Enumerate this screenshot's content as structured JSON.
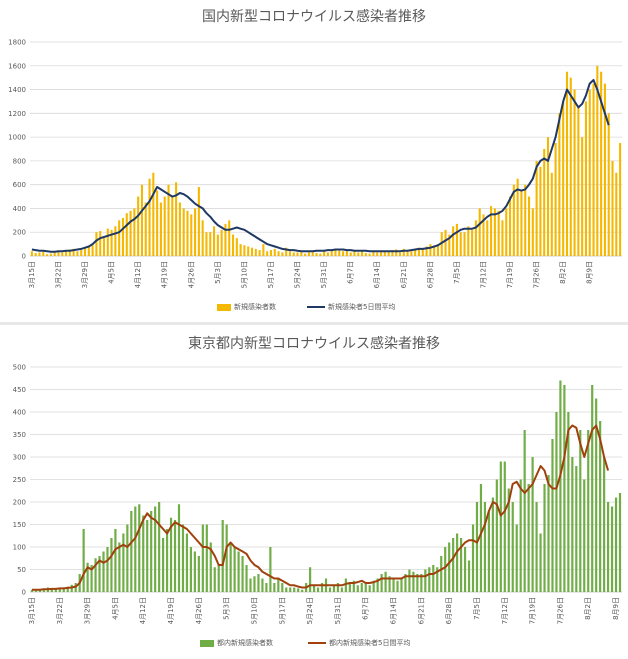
{
  "chart_data": [
    {
      "type": "bar",
      "title": "国内新型コロナウイルス感染者推移",
      "ylim": [
        0,
        1800
      ],
      "yticks": [
        0,
        200,
        400,
        600,
        800,
        1000,
        1200,
        1400,
        1600,
        1800
      ],
      "grid": true,
      "legend_position": "bottom",
      "bar_color": "#f5b800",
      "line_color": "#1f3864",
      "x_tick_labels": [
        "3月15日",
        "3月22日",
        "3月29日",
        "4月5日",
        "4月12日",
        "4月19日",
        "4月26日",
        "5月3日",
        "5月10日",
        "5月17日",
        "5月24日",
        "5月31日",
        "6月7日",
        "6月14日",
        "6月21日",
        "6月28日",
        "7月5日",
        "7月12日",
        "7月19日",
        "7月26日",
        "8月2日",
        "8月9日"
      ],
      "series": [
        {
          "name": "新規感染者数",
          "type": "bar",
          "values": [
            40,
            25,
            30,
            35,
            15,
            20,
            40,
            35,
            30,
            45,
            55,
            60,
            40,
            50,
            70,
            75,
            90,
            200,
            210,
            150,
            230,
            220,
            250,
            300,
            320,
            360,
            380,
            400,
            500,
            600,
            450,
            650,
            700,
            550,
            450,
            500,
            600,
            500,
            620,
            450,
            400,
            380,
            350,
            400,
            580,
            300,
            200,
            200,
            250,
            180,
            220,
            270,
            300,
            180,
            150,
            100,
            90,
            80,
            70,
            60,
            50,
            100,
            40,
            50,
            60,
            40,
            30,
            70,
            40,
            30,
            30,
            40,
            20,
            30,
            35,
            25,
            20,
            40,
            30,
            45,
            60,
            45,
            40,
            50,
            30,
            45,
            30,
            40,
            25,
            20,
            40,
            30,
            40,
            35,
            40,
            50,
            55,
            30,
            60,
            50,
            40,
            60,
            70,
            60,
            80,
            100,
            80,
            100,
            200,
            220,
            180,
            250,
            270,
            200,
            200,
            250,
            220,
            300,
            400,
            350,
            300,
            420,
            400,
            380,
            300,
            400,
            500,
            600,
            650,
            550,
            600,
            500,
            400,
            800,
            750,
            900,
            1000,
            700,
            950,
            1200,
            1300,
            1550,
            1500,
            1400,
            1250,
            1000,
            1300,
            1400,
            1450,
            1600,
            1550,
            1450,
            1200,
            800,
            700,
            950
          ]
        },
        {
          "name": "新規感染者5日間平均",
          "type": "line",
          "values": [
            55,
            50,
            45,
            45,
            40,
            35,
            35,
            40,
            40,
            45,
            45,
            50,
            55,
            60,
            70,
            80,
            100,
            130,
            150,
            160,
            170,
            180,
            190,
            200,
            230,
            260,
            290,
            310,
            340,
            380,
            420,
            460,
            520,
            580,
            560,
            540,
            520,
            500,
            510,
            530,
            520,
            500,
            470,
            440,
            420,
            400,
            360,
            330,
            290,
            260,
            240,
            220,
            220,
            230,
            240,
            230,
            220,
            200,
            180,
            160,
            140,
            120,
            100,
            90,
            80,
            70,
            60,
            55,
            50,
            50,
            45,
            40,
            40,
            40,
            40,
            45,
            45,
            45,
            50,
            50,
            55,
            55,
            55,
            50,
            50,
            45,
            45,
            45,
            45,
            40,
            40,
            40,
            40,
            40,
            40,
            40,
            40,
            40,
            45,
            45,
            50,
            55,
            60,
            60,
            65,
            70,
            80,
            90,
            110,
            130,
            150,
            180,
            200,
            220,
            230,
            230,
            230,
            240,
            270,
            300,
            330,
            350,
            350,
            360,
            380,
            420,
            480,
            540,
            560,
            550,
            560,
            600,
            650,
            750,
            800,
            820,
            800,
            900,
            1000,
            1150,
            1300,
            1400,
            1350,
            1300,
            1250,
            1280,
            1350,
            1450,
            1480,
            1400,
            1300,
            1200,
            1100
          ]
        }
      ]
    },
    {
      "type": "bar",
      "title": "東京都内新型コロナウイルス感染者推移",
      "ylim": [
        0,
        500
      ],
      "yticks": [
        0,
        50,
        100,
        150,
        200,
        250,
        300,
        350,
        400,
        450,
        500
      ],
      "grid": true,
      "legend_position": "bottom",
      "bar_color": "#70ad47",
      "line_color": "#a0410d",
      "x_tick_labels": [
        "3月15日",
        "3月22日",
        "3月29日",
        "4月5日",
        "4月12日",
        "4月19日",
        "4月26日",
        "5月3日",
        "5月10日",
        "5月17日",
        "5月24日",
        "5月31日",
        "6月7日",
        "6月14日",
        "6月21日",
        "6月28日",
        "7月5日",
        "7月12日",
        "7月19日",
        "7月26日",
        "8月2日",
        "8月9日"
      ],
      "series": [
        {
          "name": "都内新規感染者数",
          "type": "bar",
          "values": [
            5,
            3,
            6,
            4,
            10,
            8,
            7,
            10,
            8,
            12,
            16,
            20,
            40,
            140,
            65,
            60,
            75,
            80,
            90,
            100,
            120,
            140,
            110,
            130,
            150,
            180,
            190,
            195,
            170,
            160,
            180,
            190,
            200,
            120,
            140,
            165,
            160,
            195,
            150,
            130,
            100,
            90,
            80,
            150,
            150,
            110,
            55,
            60,
            160,
            150,
            110,
            100,
            90,
            80,
            60,
            30,
            35,
            40,
            30,
            20,
            100,
            20,
            30,
            20,
            10,
            10,
            10,
            8,
            5,
            20,
            55,
            15,
            10,
            20,
            30,
            10,
            15,
            20,
            10,
            30,
            20,
            25,
            15,
            20,
            20,
            15,
            25,
            30,
            40,
            45,
            35,
            30,
            25,
            30,
            40,
            50,
            45,
            40,
            40,
            50,
            55,
            60,
            55,
            80,
            100,
            110,
            120,
            130,
            120,
            100,
            70,
            150,
            200,
            240,
            200,
            180,
            210,
            250,
            290,
            290,
            230,
            200,
            150,
            250,
            360,
            240,
            300,
            200,
            130,
            240,
            260,
            340,
            400,
            470,
            460,
            400,
            300,
            280,
            360,
            250,
            360,
            460,
            430,
            380,
            300,
            200,
            190,
            210,
            220
          ]
        },
        {
          "name": "都内新規感染者5日間平均",
          "type": "line",
          "values": [
            5,
            5,
            5,
            6,
            6,
            7,
            7,
            8,
            8,
            9,
            10,
            12,
            20,
            40,
            55,
            50,
            60,
            70,
            65,
            70,
            80,
            95,
            100,
            105,
            100,
            110,
            120,
            140,
            160,
            175,
            165,
            160,
            150,
            140,
            130,
            145,
            155,
            150,
            145,
            140,
            130,
            120,
            110,
            100,
            100,
            95,
            80,
            60,
            60,
            100,
            110,
            100,
            95,
            90,
            85,
            70,
            60,
            55,
            45,
            40,
            35,
            30,
            30,
            25,
            20,
            15,
            15,
            12,
            10,
            10,
            15,
            15,
            15,
            15,
            15,
            15,
            15,
            15,
            15,
            18,
            20,
            20,
            22,
            25,
            20,
            20,
            22,
            25,
            30,
            30,
            30,
            30,
            30,
            30,
            35,
            35,
            35,
            35,
            35,
            35,
            40,
            40,
            45,
            50,
            55,
            65,
            75,
            90,
            100,
            110,
            115,
            115,
            110,
            130,
            150,
            180,
            200,
            195,
            170,
            180,
            200,
            240,
            245,
            230,
            220,
            230,
            240,
            260,
            280,
            270,
            240,
            230,
            230,
            260,
            300,
            360,
            370,
            365,
            330,
            300,
            330,
            360,
            370,
            340,
            300,
            270
          ]
        }
      ]
    }
  ]
}
